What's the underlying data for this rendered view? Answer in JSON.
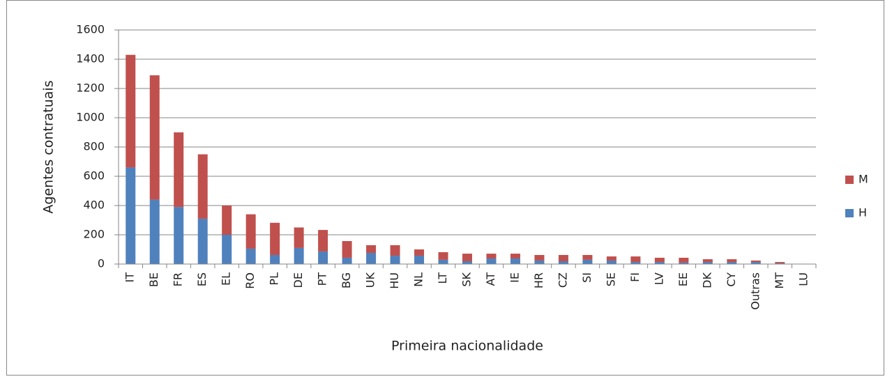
{
  "chart_data": {
    "type": "stacked_bar",
    "x_label": "Primeira nacionalidade",
    "y_label": "Agentes contratuais",
    "categories": [
      "IT",
      "BE",
      "FR",
      "ES",
      "EL",
      "RO",
      "PL",
      "DE",
      "PT",
      "BG",
      "UK",
      "HU",
      "NL",
      "LT",
      "SK",
      "AT",
      "IE",
      "HR",
      "CZ",
      "SI",
      "SE",
      "FI",
      "LV",
      "EE",
      "DK",
      "CY",
      "Outras",
      "MT",
      "LU"
    ],
    "series": [
      {
        "name": "H",
        "color": "#4f81bd",
        "values": [
          660,
          440,
          390,
          310,
          200,
          105,
          62,
          110,
          86,
          43,
          76,
          57,
          57,
          29,
          19,
          38,
          38,
          24,
          19,
          29,
          24,
          14,
          14,
          10,
          14,
          14,
          14,
          5,
          0
        ]
      },
      {
        "name": "M",
        "color": "#c0504d",
        "values": [
          770,
          850,
          510,
          440,
          200,
          235,
          220,
          140,
          147,
          114,
          53,
          72,
          43,
          52,
          52,
          33,
          33,
          38,
          43,
          33,
          28,
          38,
          29,
          33,
          19,
          19,
          10,
          9,
          1
        ]
      }
    ],
    "ylim": [
      0,
      1600
    ],
    "yticks": [
      0,
      200,
      400,
      600,
      800,
      1000,
      1200,
      1400,
      1600
    ],
    "grid": true,
    "legend": "right"
  }
}
